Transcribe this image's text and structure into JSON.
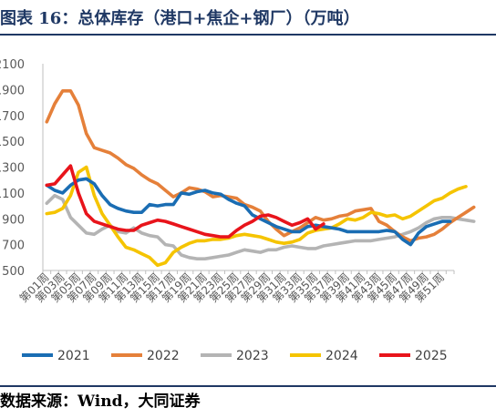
{
  "header": {
    "title": "图表 16：总体库存（港口+焦企+钢厂）（万吨）"
  },
  "footer": {
    "source": "数据来源：Wind，大同证券"
  },
  "colors": {
    "2021": "#1a6db3",
    "2022": "#e5803a",
    "2023": "#b4b4b4",
    "2024": "#f5c400",
    "2025": "#e8141b"
  },
  "chart_data": {
    "type": "line",
    "title": "",
    "xlabel": "",
    "ylabel": "",
    "ylim": [
      500,
      2100
    ],
    "yticks": [
      "2100",
      "1900",
      "1700",
      "1500",
      "1300",
      "1100",
      "900",
      "700",
      "500"
    ],
    "x_labels": [
      "第01周",
      "第03周",
      "第05周",
      "第07周",
      "第09周",
      "第11周",
      "第13周",
      "第15周",
      "第17周",
      "第19周",
      "第21周",
      "第23周",
      "第25周",
      "第27周",
      "第29周",
      "第31周",
      "第33周",
      "第35周",
      "第37周",
      "第39周",
      "第41周",
      "第43周",
      "第45周",
      "第47周",
      "第49周",
      "第51周"
    ],
    "legend_position": "bottom",
    "series": [
      {
        "name": "2021",
        "values": [
          1160,
          1120,
          1100,
          1160,
          1200,
          1210,
          1170,
          1080,
          1010,
          980,
          960,
          950,
          950,
          1010,
          1000,
          1010,
          1010,
          1100,
          1090,
          1110,
          1120,
          1100,
          1090,
          1050,
          1020,
          1000,
          930,
          900,
          870,
          840,
          820,
          800,
          800,
          840,
          850,
          840,
          830,
          820,
          800,
          800,
          800,
          800,
          800,
          810,
          800,
          740,
          700,
          790,
          840,
          860,
          880,
          880
        ]
      },
      {
        "name": "2022",
        "values": [
          1650,
          1790,
          1890,
          1890,
          1780,
          1560,
          1450,
          1430,
          1410,
          1370,
          1320,
          1290,
          1240,
          1200,
          1170,
          1120,
          1070,
          1100,
          1140,
          1130,
          1110,
          1070,
          1080,
          1070,
          1060,
          1010,
          990,
          960,
          880,
          820,
          770,
          800,
          830,
          870,
          910,
          890,
          900,
          920,
          930,
          960,
          970,
          980,
          880,
          850,
          800,
          760,
          730,
          750,
          760,
          780,
          820,
          870,
          910,
          950,
          990
        ]
      },
      {
        "name": "2023",
        "values": [
          1020,
          1080,
          1050,
          910,
          850,
          790,
          780,
          820,
          850,
          800,
          790,
          830,
          790,
          770,
          760,
          700,
          690,
          620,
          600,
          590,
          590,
          600,
          610,
          620,
          640,
          660,
          650,
          640,
          660,
          660,
          680,
          690,
          680,
          670,
          670,
          690,
          700,
          710,
          720,
          730,
          730,
          730,
          740,
          750,
          760,
          780,
          800,
          830,
          870,
          900,
          910,
          910,
          900,
          890,
          880
        ]
      },
      {
        "name": "2024",
        "values": [
          940,
          950,
          980,
          1080,
          1260,
          1300,
          1080,
          940,
          850,
          760,
          680,
          660,
          630,
          600,
          540,
          560,
          640,
          680,
          710,
          730,
          730,
          740,
          740,
          750,
          770,
          780,
          770,
          760,
          740,
          720,
          710,
          720,
          740,
          790,
          810,
          820,
          830,
          860,
          900,
          890,
          910,
          950,
          940,
          920,
          930,
          900,
          920,
          960,
          1000,
          1040,
          1060,
          1100,
          1130,
          1150
        ]
      },
      {
        "name": "2025",
        "values": [
          1160,
          1170,
          1240,
          1310,
          1100,
          940,
          880,
          860,
          840,
          820,
          810,
          810,
          850,
          870,
          890,
          880,
          860,
          840,
          820,
          800,
          780,
          770,
          760,
          760,
          810,
          850,
          880,
          920,
          930,
          910,
          880,
          850,
          870,
          900,
          820,
          860
        ]
      }
    ]
  }
}
